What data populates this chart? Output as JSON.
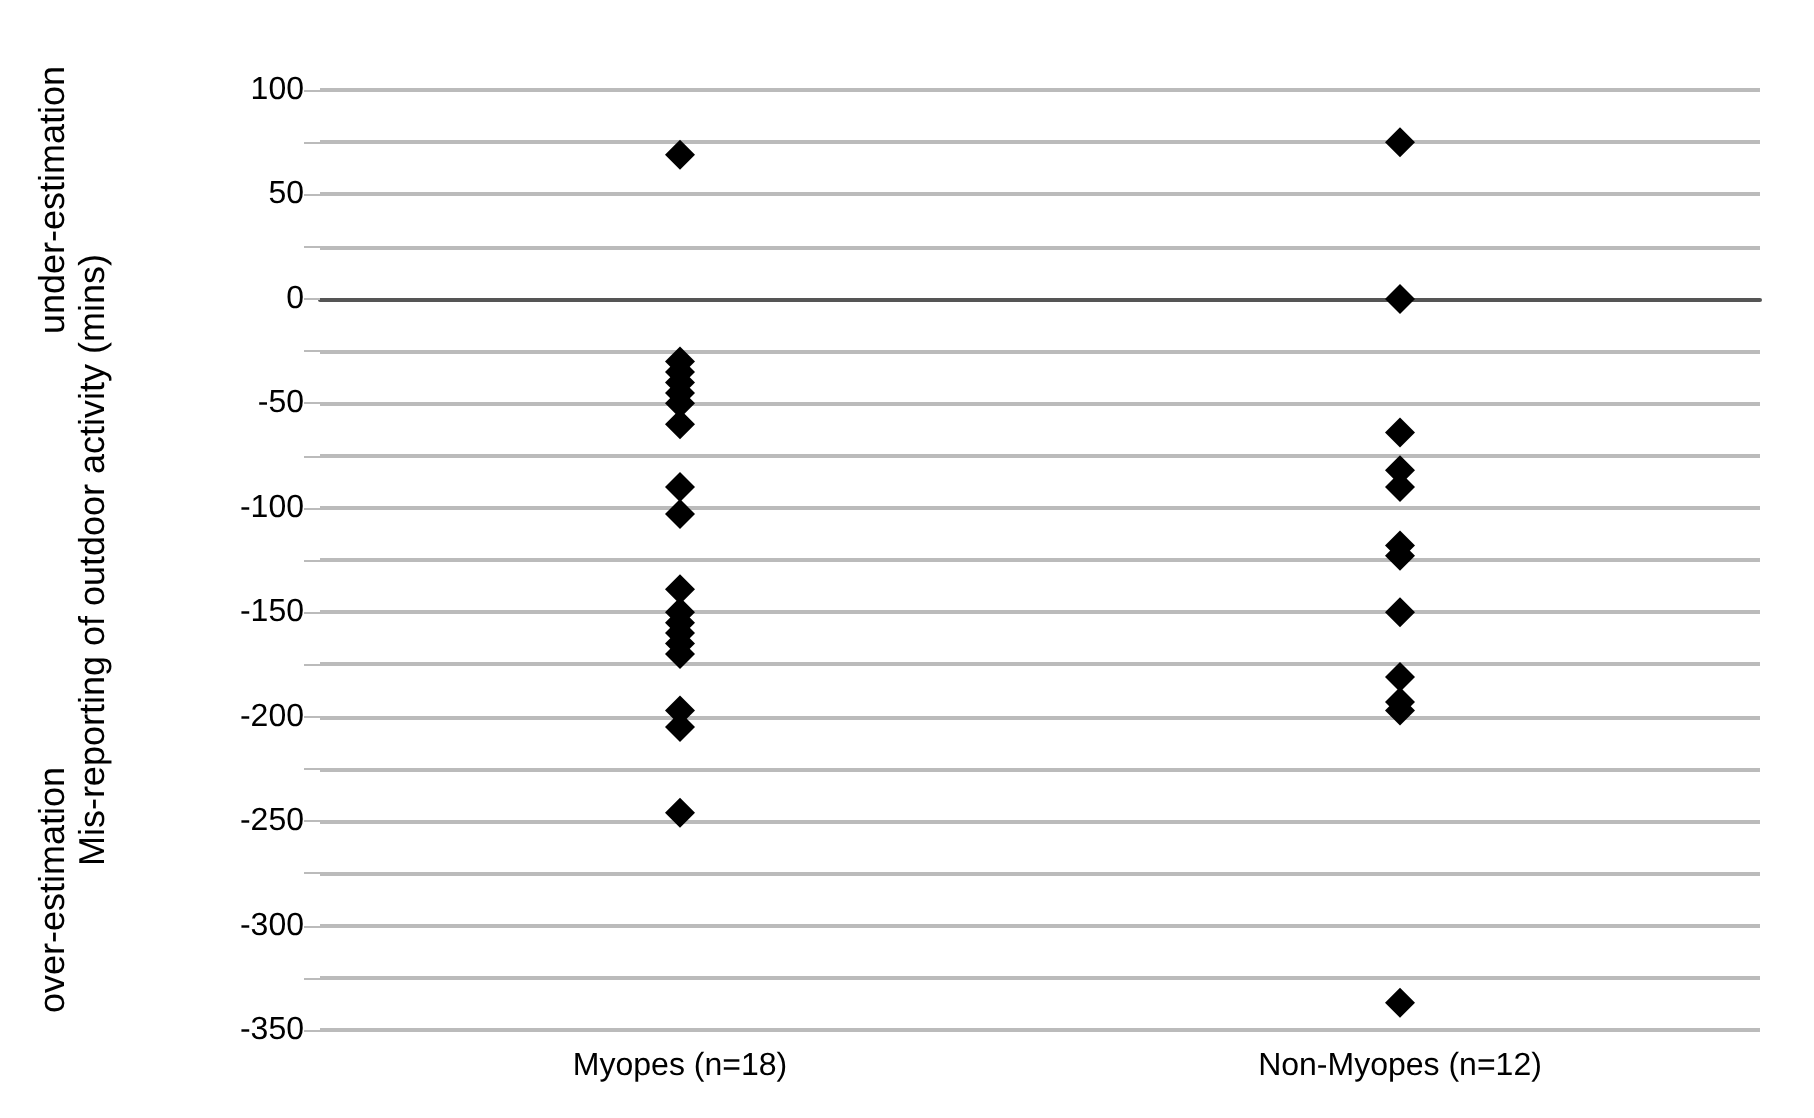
{
  "chart_data": {
    "type": "scatter",
    "ylabel": "Mis-reporting of outdoor activity (mins)",
    "annotations": [
      "under-estimation",
      "over-estimation"
    ],
    "categories": [
      "Myopes (n=18)",
      "Non-Myopes (n=12)"
    ],
    "series": [
      {
        "color": "#000000",
        "x": [
          "Myopes (n=18)",
          "Myopes (n=18)",
          "Myopes (n=18)",
          "Myopes (n=18)",
          "Myopes (n=18)",
          "Myopes (n=18)",
          "Myopes (n=18)",
          "Myopes (n=18)",
          "Myopes (n=18)",
          "Myopes (n=18)",
          "Myopes (n=18)",
          "Myopes (n=18)",
          "Myopes (n=18)",
          "Myopes (n=18)",
          "Myopes (n=18)",
          "Myopes (n=18)",
          "Myopes (n=18)",
          "Myopes (n=18)",
          "Non-Myopes (n=12)",
          "Non-Myopes (n=12)",
          "Non-Myopes (n=12)",
          "Non-Myopes (n=12)",
          "Non-Myopes (n=12)",
          "Non-Myopes (n=12)",
          "Non-Myopes (n=12)",
          "Non-Myopes (n=12)",
          "Non-Myopes (n=12)",
          "Non-Myopes (n=12)",
          "Non-Myopes (n=12)",
          "Non-Myopes (n=12)"
        ],
        "values": [
          69,
          -30,
          -35,
          -40,
          -45,
          -50,
          -60,
          -90,
          -103,
          -139,
          -150,
          -155,
          -160,
          -165,
          -170,
          -197,
          -205,
          -246,
          75,
          0,
          -64,
          -82,
          -90,
          -118,
          -123,
          -150,
          -181,
          -193,
          -197,
          -337
        ]
      }
    ],
    "ylim": [
      -350,
      100
    ],
    "yticks": [
      -350,
      {
        "value": -325,
        "label": null
      },
      -300,
      {
        "value": -275,
        "label": null
      },
      -250,
      {
        "value": -225,
        "label": null
      },
      -200,
      {
        "value": -175,
        "label": null
      },
      -150,
      {
        "value": -125,
        "label": null
      },
      -100,
      {
        "value": -75,
        "label": null
      },
      -50,
      {
        "value": -25,
        "label": null
      },
      0,
      {
        "value": 25,
        "label": null
      },
      50,
      {
        "value": 75,
        "label": null
      },
      100
    ],
    "grid": "y",
    "marker": "diamond"
  }
}
